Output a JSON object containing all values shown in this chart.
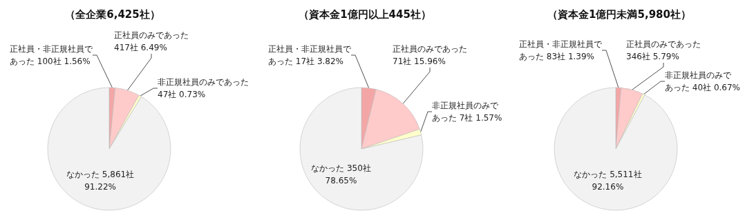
{
  "chart_data": [
    {
      "type": "pie",
      "title": "（全企業6,425社）",
      "categories": [
        "正社員・非正規社員であった",
        "正社員のみであった",
        "非正規社員のみであった",
        "なかった"
      ],
      "values": [
        100,
        417,
        47,
        5861
      ],
      "value_labels": [
        " 100社 1.56%",
        "\n417社 6.49%",
        "\n47社 0.73%",
        " 5,861社\n91.22%"
      ],
      "colors": [
        "#f4a6a6",
        "#ffcaca",
        "#ffffcc",
        "#f2f2f2"
      ]
    },
    {
      "type": "pie",
      "title": "（資本金1億円以上445社）",
      "categories": [
        "正社員・非正規社員であった",
        "正社員のみであった",
        "非正規社員のみであった",
        "なかった"
      ],
      "values": [
        17,
        71,
        7,
        350
      ],
      "value_labels": [
        " 17社 3.82%",
        "\n71社 15.96%",
        " 7社 1.57%",
        " 350社\n78.65%"
      ],
      "colors": [
        "#f4a6a6",
        "#ffcaca",
        "#ffffcc",
        "#f2f2f2"
      ]
    },
    {
      "type": "pie",
      "title": "（資本金1億円未満5,980社）",
      "categories": [
        "正社員・非正規社員であった",
        "正社員のみであった",
        "非正規社員のみであった",
        "なかった"
      ],
      "values": [
        83,
        346,
        40,
        5511
      ],
      "value_labels": [
        " 83社 1.39%",
        "\n346社 5.79%",
        " 40社 0.67%",
        " 5,511社\n92.16%"
      ],
      "colors": [
        "#f4a6a6",
        "#ffcaca",
        "#ffffcc",
        "#f2f2f2"
      ]
    }
  ]
}
